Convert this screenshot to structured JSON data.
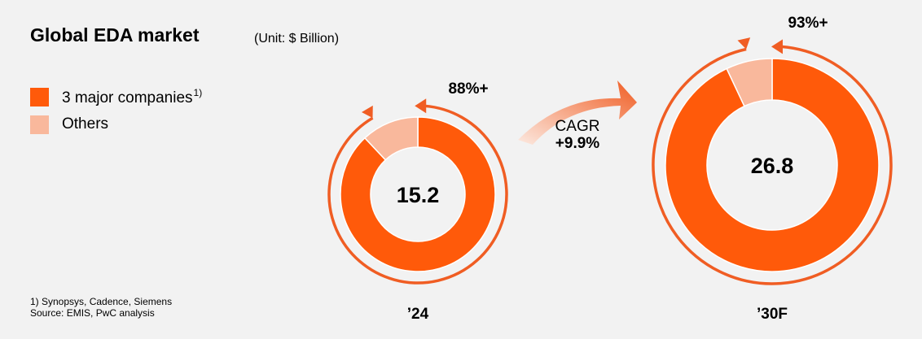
{
  "title": "Global EDA market",
  "unit": "(Unit: $ Billion)",
  "legend": [
    {
      "label": "3 major companies",
      "sup": "1)",
      "color": "#ff5a0a"
    },
    {
      "label": "Others",
      "color": "#f9b89c"
    }
  ],
  "footnote": {
    "line1": "1) Synopsys, Cadence, Siemens",
    "line2": "Source: EMIS, PwC analysis"
  },
  "cagr": {
    "label": "CAGR",
    "value": "+9.9%"
  },
  "colors": {
    "major": "#ff5a0a",
    "others": "#f9b89c",
    "arrow": "#f05d23"
  },
  "chart_data": {
    "type": "pie",
    "style": "donut",
    "series_names": [
      "3 major companies",
      "Others"
    ],
    "charts": [
      {
        "year": "’24",
        "total": 15.2,
        "total_label": "15.2",
        "major_share": 0.88,
        "others_share": 0.12,
        "share_label": "88%+"
      },
      {
        "year": "’30F",
        "total": 26.8,
        "total_label": "26.8",
        "major_share": 0.93,
        "others_share": 0.07,
        "share_label": "93%+"
      }
    ]
  }
}
